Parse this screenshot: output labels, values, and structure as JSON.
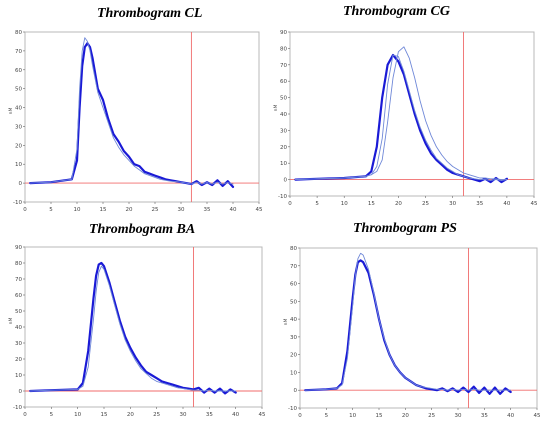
{
  "colors": {
    "main_line": "#1a1ad6",
    "replicate_line": "#6f88d8",
    "reference_line": "#f06b6b",
    "frame": "#b9b9b9"
  },
  "chart_data": [
    {
      "type": "line",
      "title": "Thrombogram CL",
      "xlabel": "",
      "ylabel": "nM",
      "xlim": [
        0,
        45
      ],
      "ylim": [
        -10,
        80
      ],
      "xticks": [
        "0",
        "5",
        "10",
        "15",
        "20",
        "25",
        "30",
        "35",
        "40",
        "45"
      ],
      "yticks": [
        "-10",
        "0",
        "10",
        "20",
        "30",
        "40",
        "50",
        "60",
        "70",
        "80"
      ],
      "reference_x": 32,
      "reference_y": 0,
      "grid": false,
      "series": [
        {
          "x": [
            1,
            5,
            9,
            10,
            10.5,
            11,
            11.5,
            12,
            12.5,
            13,
            14,
            15,
            16,
            17,
            18,
            19,
            20,
            21,
            22,
            23,
            24,
            25,
            26,
            27,
            28,
            29,
            30,
            31,
            32,
            33,
            34,
            35,
            36,
            37,
            38,
            39,
            40
          ],
          "y": [
            0,
            0.5,
            2,
            12,
            40,
            62,
            72,
            74,
            72,
            66,
            50,
            44,
            34,
            26,
            22,
            17,
            14,
            10,
            9,
            6,
            5,
            4,
            3,
            2,
            1.5,
            1,
            0.5,
            0,
            -0.5,
            1,
            -1,
            0.5,
            -1,
            1.5,
            -1.5,
            1,
            -2
          ]
        },
        {
          "x": [
            1,
            5,
            9,
            10,
            10.5,
            11,
            11.5,
            12,
            12.5,
            13,
            14,
            15,
            16,
            17,
            18,
            19,
            20,
            21,
            22,
            23,
            24,
            25,
            26,
            27,
            28,
            29,
            30,
            31,
            32,
            33,
            34,
            35,
            36,
            37,
            38,
            39,
            40
          ],
          "y": [
            0,
            0.5,
            2,
            18,
            50,
            70,
            77,
            75,
            70,
            62,
            48,
            40,
            32,
            24,
            19,
            15,
            12,
            9,
            7,
            5,
            4,
            3,
            2,
            1.5,
            1,
            0.8,
            0.5,
            0,
            -0.5,
            0.5,
            -0.5,
            0.3,
            -0.5,
            0.5,
            -0.5,
            0.3,
            -0.5
          ]
        }
      ]
    },
    {
      "type": "line",
      "title": "Thrombogram CG",
      "xlabel": "",
      "ylabel": "nM",
      "xlim": [
        0,
        45
      ],
      "ylim": [
        -10,
        90
      ],
      "xticks": [
        "0",
        "5",
        "10",
        "15",
        "20",
        "25",
        "30",
        "35",
        "40",
        "45"
      ],
      "yticks": [
        "-10",
        "0",
        "10",
        "20",
        "30",
        "40",
        "50",
        "60",
        "70",
        "80",
        "90"
      ],
      "reference_x": 32,
      "reference_y": 0,
      "grid": false,
      "series": [
        {
          "x": [
            1,
            5,
            10,
            14,
            15,
            16,
            17,
            18,
            19,
            20,
            21,
            22,
            23,
            24,
            25,
            26,
            27,
            28,
            29,
            30,
            31,
            32,
            33,
            34,
            35,
            36,
            37,
            38,
            39,
            40
          ],
          "y": [
            0,
            0.5,
            1,
            2,
            5,
            20,
            50,
            70,
            76,
            72,
            64,
            52,
            40,
            30,
            22,
            16,
            12,
            9,
            6,
            4,
            3,
            2,
            1,
            0,
            -1,
            0.5,
            -1.5,
            1,
            -1.5,
            0.5
          ]
        },
        {
          "x": [
            1,
            5,
            10,
            14,
            15,
            16,
            17,
            18,
            19,
            20,
            21,
            22,
            23,
            24,
            25,
            26,
            27,
            28,
            29,
            30,
            31,
            32,
            33,
            34,
            35,
            36,
            37,
            38,
            39,
            40
          ],
          "y": [
            0,
            0.5,
            1,
            2,
            3,
            8,
            25,
            58,
            76,
            75,
            66,
            54,
            42,
            32,
            24,
            18,
            13,
            10,
            7,
            5,
            3,
            2,
            1,
            0.5,
            0,
            0,
            -0.5,
            0,
            -0.5,
            0
          ]
        },
        {
          "x": [
            1,
            5,
            10,
            14,
            15,
            16,
            17,
            18,
            19,
            20,
            21,
            22,
            23,
            24,
            25,
            26,
            27,
            28,
            29,
            30,
            31,
            32,
            33,
            34,
            35,
            36,
            37,
            38,
            39,
            40
          ],
          "y": [
            0,
            0.5,
            1,
            2,
            3,
            5,
            12,
            35,
            62,
            78,
            81,
            74,
            62,
            48,
            36,
            27,
            20,
            15,
            11,
            8,
            6,
            4,
            3,
            2,
            1,
            1,
            0.5,
            0.5,
            0,
            0
          ]
        }
      ]
    },
    {
      "type": "line",
      "title": "Thrombogram BA",
      "xlabel": "",
      "ylabel": "nM",
      "xlim": [
        0,
        45
      ],
      "ylim": [
        -10,
        90
      ],
      "xticks": [
        "0",
        "5",
        "10",
        "15",
        "20",
        "25",
        "30",
        "35",
        "40",
        "45"
      ],
      "yticks": [
        "-10",
        "0",
        "10",
        "20",
        "30",
        "40",
        "50",
        "60",
        "70",
        "80",
        "90"
      ],
      "reference_x": 32,
      "reference_y": 0,
      "grid": false,
      "series": [
        {
          "x": [
            1,
            5,
            10,
            11,
            12,
            13,
            13.5,
            14,
            14.5,
            15,
            16,
            17,
            18,
            19,
            20,
            21,
            22,
            23,
            24,
            25,
            26,
            27,
            28,
            29,
            30,
            31,
            32,
            33,
            34,
            35,
            36,
            37,
            38,
            39,
            40
          ],
          "y": [
            0,
            0.5,
            1,
            5,
            25,
            58,
            72,
            79,
            80,
            78,
            68,
            56,
            44,
            34,
            27,
            21,
            16,
            12,
            10,
            8,
            6,
            5,
            4,
            3,
            2,
            1.5,
            1,
            2,
            -1,
            1.5,
            -1,
            1.5,
            -1.5,
            1,
            -1
          ]
        },
        {
          "x": [
            1,
            5,
            10,
            11,
            12,
            13,
            13.5,
            14,
            14.5,
            15,
            16,
            17,
            18,
            19,
            20,
            21,
            22,
            23,
            24,
            25,
            26,
            27,
            28,
            29,
            30,
            31,
            32,
            33,
            34,
            35,
            36,
            37,
            38,
            39,
            40
          ],
          "y": [
            0,
            0.5,
            1,
            3,
            15,
            45,
            62,
            74,
            78,
            76,
            66,
            54,
            42,
            32,
            25,
            19,
            14,
            11,
            8,
            6,
            5,
            4,
            3,
            2,
            1.5,
            1,
            0.5,
            0.5,
            0,
            0.5,
            0,
            0,
            0,
            0,
            0
          ]
        }
      ]
    },
    {
      "type": "line",
      "title": "Thrombogram PS",
      "xlabel": "",
      "ylabel": "nM",
      "xlim": [
        0,
        45
      ],
      "ylim": [
        -10,
        80
      ],
      "xticks": [
        "0",
        "5",
        "10",
        "15",
        "20",
        "25",
        "30",
        "35",
        "40",
        "45"
      ],
      "yticks": [
        "-10",
        "0",
        "10",
        "20",
        "30",
        "40",
        "50",
        "60",
        "70",
        "80"
      ],
      "reference_x": 32,
      "reference_y": 0,
      "grid": false,
      "series": [
        {
          "x": [
            1,
            5,
            7,
            8,
            9,
            10,
            10.5,
            11,
            11.5,
            12,
            13,
            14,
            15,
            16,
            17,
            18,
            19,
            20,
            21,
            22,
            23,
            24,
            25,
            26,
            27,
            28,
            29,
            30,
            31,
            32,
            33,
            34,
            35,
            36,
            37,
            38,
            39,
            40
          ],
          "y": [
            0,
            0.5,
            1,
            4,
            22,
            52,
            65,
            72,
            73,
            72,
            66,
            54,
            40,
            28,
            20,
            14,
            10,
            7,
            5,
            3,
            2,
            1,
            0.5,
            0,
            1,
            -0.5,
            1,
            -1,
            1.5,
            -1,
            2,
            -1.5,
            1.5,
            -2,
            1.5,
            -2,
            1,
            -1
          ]
        },
        {
          "x": [
            1,
            5,
            7,
            8,
            9,
            10,
            10.5,
            11,
            11.5,
            12,
            13,
            14,
            15,
            16,
            17,
            18,
            19,
            20,
            21,
            22,
            23,
            24,
            25,
            26,
            27,
            28,
            29,
            30,
            31,
            32,
            33,
            34,
            35,
            36,
            37,
            38,
            39,
            40
          ],
          "y": [
            0,
            0.5,
            1,
            3,
            18,
            48,
            64,
            74,
            77,
            76,
            68,
            55,
            40,
            29,
            20,
            14,
            10,
            7,
            5,
            3,
            2,
            1.5,
            1,
            0.5,
            0.5,
            0,
            0.5,
            0,
            0.5,
            0,
            0.5,
            0,
            0,
            0,
            0,
            0,
            0,
            0
          ]
        }
      ]
    }
  ]
}
